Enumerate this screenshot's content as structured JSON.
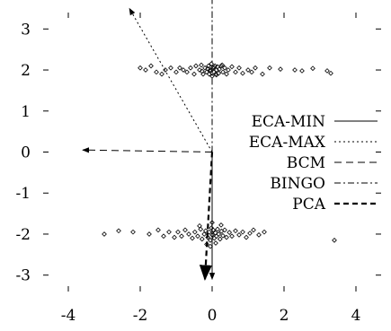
{
  "chart_data": {
    "type": "scatter",
    "title": "",
    "xlabel": "",
    "ylabel": "",
    "xlim": [
      -4.7,
      4.7
    ],
    "ylim": [
      -3.4,
      3.4
    ],
    "xticks": [
      -4,
      -2,
      0,
      2,
      4
    ],
    "yticks": [
      -3,
      -2,
      -1,
      0,
      1,
      2,
      3
    ],
    "xtick_labels": [
      "-4",
      "-2",
      "0",
      "2",
      "4"
    ],
    "ytick_labels": [
      "-3",
      "-2",
      "-1",
      "0",
      "1",
      "2",
      "3"
    ],
    "grid": false,
    "legend_position": "right",
    "legend": [
      {
        "name": "ECA-MIN",
        "dash": "solid",
        "color": "#000000"
      },
      {
        "name": "ECA-MAX",
        "dash": "dotted",
        "color": "#000000"
      },
      {
        "name": "BCM",
        "dash": "dashed",
        "color": "#000000"
      },
      {
        "name": "BINGO",
        "dash": "dashdot",
        "color": "#000000"
      },
      {
        "name": "PCA",
        "dash": "thick-dashed",
        "color": "#000000"
      }
    ],
    "vectors": [
      {
        "series": "ECA-MIN",
        "from": [
          0,
          0
        ],
        "to": [
          0.0,
          -3.1
        ]
      },
      {
        "series": "ECA-MAX",
        "from": [
          0,
          0
        ],
        "to": [
          -2.3,
          3.5
        ]
      },
      {
        "series": "BCM",
        "from": [
          0,
          0
        ],
        "to": [
          -3.6,
          0.05
        ]
      },
      {
        "series": "BINGO",
        "from": [
          0,
          0
        ],
        "to": [
          0.0,
          3.9
        ]
      },
      {
        "series": "PCA",
        "from": [
          0,
          0
        ],
        "to": [
          -0.2,
          -3.1
        ]
      }
    ],
    "clusters": [
      {
        "name": "upper",
        "points": [
          [
            -2.0,
            2.05
          ],
          [
            -1.85,
            2.0
          ],
          [
            -1.7,
            2.1
          ],
          [
            -1.55,
            1.95
          ],
          [
            -1.4,
            1.9
          ],
          [
            -1.3,
            2.0
          ],
          [
            -1.15,
            2.05
          ],
          [
            -1.0,
            1.95
          ],
          [
            -0.9,
            2.05
          ],
          [
            -0.8,
            2.0
          ],
          [
            -0.7,
            1.95
          ],
          [
            -0.6,
            2.05
          ],
          [
            -0.5,
            1.9
          ],
          [
            -0.45,
            2.1
          ],
          [
            -0.35,
            2.0
          ],
          [
            -0.3,
            2.12
          ],
          [
            -0.25,
            1.9
          ],
          [
            -0.2,
            2.05
          ],
          [
            -0.15,
            1.95
          ],
          [
            -0.1,
            2.1
          ],
          [
            -0.08,
            1.9
          ],
          [
            -0.05,
            2.0
          ],
          [
            -0.02,
            2.15
          ],
          [
            0.0,
            1.85
          ],
          [
            0.02,
            2.05
          ],
          [
            0.05,
            1.95
          ],
          [
            0.08,
            2.1
          ],
          [
            0.1,
            1.9
          ],
          [
            0.12,
            2.0
          ],
          [
            0.15,
            2.08
          ],
          [
            0.18,
            1.92
          ],
          [
            0.2,
            2.02
          ],
          [
            0.25,
            2.1
          ],
          [
            0.3,
            1.95
          ],
          [
            0.35,
            2.05
          ],
          [
            0.4,
            1.9
          ],
          [
            0.45,
            2.0
          ],
          [
            0.55,
            2.08
          ],
          [
            0.65,
            1.95
          ],
          [
            0.75,
            2.05
          ],
          [
            0.85,
            1.92
          ],
          [
            1.0,
            2.0
          ],
          [
            1.1,
            1.95
          ],
          [
            1.2,
            2.05
          ],
          [
            1.4,
            1.9
          ],
          [
            1.6,
            2.05
          ],
          [
            1.9,
            2.02
          ],
          [
            2.3,
            2.0
          ],
          [
            2.5,
            1.98
          ],
          [
            2.8,
            2.04
          ],
          [
            3.2,
            1.98
          ],
          [
            3.3,
            1.92
          ],
          [
            -0.05,
            1.97
          ],
          [
            0.05,
            2.07
          ],
          [
            -0.12,
            2.03
          ],
          [
            0.12,
            1.88
          ],
          [
            -0.28,
            1.97
          ],
          [
            0.28,
            2.12
          ]
        ]
      },
      {
        "name": "lower",
        "points": [
          [
            -3.0,
            -2.0
          ],
          [
            -2.6,
            -1.92
          ],
          [
            -2.2,
            -1.95
          ],
          [
            -1.75,
            -2.0
          ],
          [
            -1.5,
            -1.9
          ],
          [
            -1.35,
            -2.05
          ],
          [
            -1.2,
            -1.95
          ],
          [
            -1.05,
            -2.08
          ],
          [
            -0.95,
            -1.95
          ],
          [
            -0.85,
            -2.05
          ],
          [
            -0.75,
            -1.9
          ],
          [
            -0.65,
            -2.0
          ],
          [
            -0.55,
            -2.1
          ],
          [
            -0.48,
            -1.95
          ],
          [
            -0.4,
            -2.05
          ],
          [
            -0.32,
            -1.88
          ],
          [
            -0.28,
            -2.12
          ],
          [
            -0.22,
            -2.0
          ],
          [
            -0.18,
            -1.92
          ],
          [
            -0.12,
            -2.08
          ],
          [
            -0.08,
            -1.95
          ],
          [
            -0.05,
            -2.15
          ],
          [
            -0.02,
            -1.85
          ],
          [
            0.0,
            -2.02
          ],
          [
            0.03,
            -1.9
          ],
          [
            0.06,
            -2.1
          ],
          [
            0.09,
            -1.97
          ],
          [
            0.12,
            -2.05
          ],
          [
            0.15,
            -1.88
          ],
          [
            0.18,
            -2.0
          ],
          [
            0.22,
            -2.12
          ],
          [
            0.26,
            -1.93
          ],
          [
            0.3,
            -2.04
          ],
          [
            0.35,
            -1.9
          ],
          [
            0.4,
            -2.08
          ],
          [
            0.48,
            -1.96
          ],
          [
            0.55,
            -2.05
          ],
          [
            0.65,
            -1.92
          ],
          [
            0.75,
            -2.02
          ],
          [
            0.85,
            -1.95
          ],
          [
            0.95,
            -2.08
          ],
          [
            1.05,
            -1.98
          ],
          [
            1.15,
            -1.9
          ],
          [
            1.3,
            -2.02
          ],
          [
            1.45,
            -1.95
          ],
          [
            3.4,
            -2.15
          ],
          [
            -0.15,
            -2.25
          ],
          [
            0.1,
            -2.22
          ],
          [
            -0.35,
            -1.8
          ],
          [
            0.25,
            -1.78
          ],
          [
            -0.05,
            -2.3
          ],
          [
            0.0,
            -1.72
          ]
        ]
      }
    ]
  }
}
